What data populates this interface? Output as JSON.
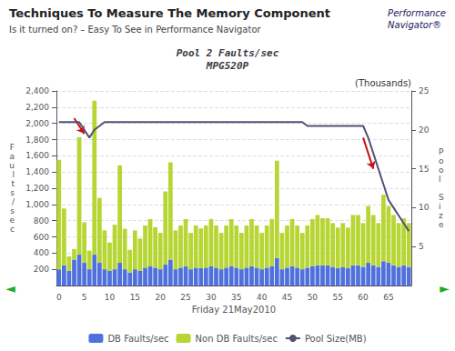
{
  "chart_data": {
    "type": "bar",
    "slide_title": "Techniques To Measure The Memory Component",
    "slide_subtitle": "Is it turned on? – Easy To See in Performance Navigator",
    "title": "Pool 2 Faults/sec\nMPG520P",
    "xlabel": "Friday 21May2010",
    "ylabel": "F\na\nu\nl\nt\ns\n/\ns\ne\nc",
    "y2label": "P\no\no\nl\n \nS\ni\nz\ne",
    "categories": [
      "0",
      null,
      null,
      null,
      null,
      "5",
      null,
      null,
      null,
      null,
      "10",
      null,
      null,
      null,
      null,
      "15",
      null,
      null,
      null,
      null,
      "20",
      null,
      null,
      null,
      null,
      "25",
      null,
      null,
      null,
      null,
      "30",
      null,
      null,
      null,
      null,
      "35",
      null,
      null,
      null,
      null,
      "40",
      null,
      null,
      null,
      null,
      "45",
      null,
      null,
      null,
      null,
      "50",
      null,
      null,
      null,
      null,
      "55",
      null,
      null,
      null,
      null,
      "60",
      null,
      null,
      null,
      null,
      "65",
      null,
      null,
      null,
      null
    ],
    "series": [
      {
        "name": "DB Faults/sec",
        "type": "bar",
        "values": [
          200,
          250,
          180,
          320,
          380,
          280,
          200,
          380,
          280,
          200,
          180,
          200,
          280,
          200,
          160,
          200,
          180,
          220,
          240,
          220,
          200,
          260,
          320,
          200,
          220,
          240,
          200,
          220,
          215,
          220,
          240,
          220,
          200,
          220,
          240,
          220,
          200,
          220,
          240,
          220,
          200,
          220,
          240,
          340,
          200,
          220,
          240,
          220,
          200,
          220,
          240,
          250,
          250,
          250,
          230,
          215,
          230,
          215,
          250,
          250,
          230,
          280,
          250,
          230,
          300,
          280,
          250,
          230,
          250,
          230
        ]
      },
      {
        "name": "Non DB Faults/sec",
        "type": "bar",
        "values": [
          1350,
          700,
          180,
          130,
          1450,
          500,
          230,
          1900,
          800,
          480,
          350,
          550,
          1200,
          500,
          280,
          480,
          400,
          520,
          580,
          500,
          450,
          900,
          1200,
          480,
          520,
          580,
          450,
          520,
          490,
          520,
          580,
          520,
          450,
          520,
          580,
          520,
          450,
          520,
          580,
          520,
          450,
          520,
          580,
          1200,
          450,
          520,
          580,
          520,
          450,
          520,
          580,
          620,
          580,
          580,
          540,
          500,
          540,
          500,
          620,
          620,
          540,
          700,
          620,
          540,
          820,
          700,
          620,
          540,
          580,
          540
        ]
      },
      {
        "name": "Pool Size(MB)",
        "type": "line",
        "axis": "y2",
        "values": [
          21,
          21,
          21,
          21,
          21,
          20,
          19,
          20,
          20.5,
          21,
          21,
          21,
          21,
          21,
          21,
          21,
          21,
          21,
          21,
          21,
          21,
          21,
          21,
          21,
          21,
          21,
          21,
          21,
          21,
          21,
          21,
          21,
          21,
          21,
          21,
          21,
          21,
          21,
          21,
          21,
          21,
          21,
          21,
          21,
          21,
          21,
          21,
          21,
          21,
          20.5,
          20.5,
          20.5,
          20.5,
          20.5,
          20.5,
          20.5,
          20.5,
          20.5,
          20.5,
          20.5,
          20.5,
          19,
          17,
          15,
          13,
          11,
          10,
          9,
          8,
          7
        ]
      }
    ],
    "stacked": true,
    "ylim": [
      0,
      2400
    ],
    "yticks": [
      200,
      400,
      600,
      800,
      1000,
      1200,
      1400,
      1600,
      1800,
      2000,
      2200,
      2400
    ],
    "y2lim": [
      0,
      25
    ],
    "y2ticks": [
      5,
      10,
      15,
      20,
      25
    ],
    "grid": true,
    "legend": "bottom",
    "annotations": {
      "units": "(Thousands)",
      "nav_left": "◄",
      "nav_right": "►",
      "logo": [
        "Performance",
        "Navigator®"
      ]
    },
    "arrows": [
      {
        "from": [
          3,
          21.5
        ],
        "to": [
          5,
          19.5
        ],
        "axis": "y2",
        "color": "#cc1111"
      },
      {
        "from": [
          60,
          19
        ],
        "to": [
          62,
          15
        ],
        "axis": "y2",
        "color": "#cc1111"
      }
    ]
  }
}
